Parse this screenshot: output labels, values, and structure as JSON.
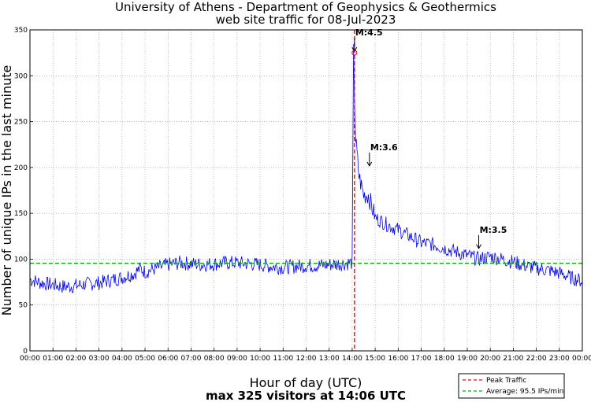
{
  "chart_data": {
    "type": "line",
    "title_line1": "University of Athens - Department of Geophysics & Geothermics",
    "title_line2": "web site traffic for 08-Jul-2023",
    "ylabel": "Number of unique IPs in the last minute",
    "xlabel": "Hour of day (UTC)",
    "subtitle": "max 325 visitors at 14:06 UTC",
    "xlim": [
      0,
      24
    ],
    "ylim": [
      0,
      350
    ],
    "x_ticks": [
      "00:00",
      "01:00",
      "02:00",
      "03:00",
      "04:00",
      "05:00",
      "06:00",
      "07:00",
      "08:00",
      "09:00",
      "10:00",
      "11:00",
      "12:00",
      "13:00",
      "14:00",
      "15:00",
      "16:00",
      "17:00",
      "18:00",
      "19:00",
      "20:00",
      "21:00",
      "22:00",
      "23:00",
      "00:00"
    ],
    "y_ticks": [
      0,
      50,
      100,
      150,
      200,
      250,
      300,
      350
    ],
    "grid": true,
    "series": [
      {
        "name": "traffic",
        "color": "#0000ff",
        "x": [
          0,
          0.5,
          1,
          1.5,
          2,
          2.5,
          3,
          3.5,
          4,
          4.5,
          4.8,
          5,
          5.5,
          6,
          6.5,
          7,
          7.5,
          8,
          8.5,
          9,
          9.5,
          10,
          10.5,
          11,
          11.5,
          12,
          12.5,
          13,
          13.5,
          14,
          14.06,
          14.15,
          14.3,
          14.5,
          14.7,
          15,
          15.5,
          16,
          16.5,
          17,
          17.5,
          18,
          18.5,
          19,
          19.5,
          20,
          20.5,
          21,
          21.5,
          22,
          22.5,
          23,
          23.5,
          24
        ],
        "y": [
          78,
          74,
          72,
          70,
          71,
          73,
          74,
          77,
          80,
          84,
          90,
          86,
          90,
          94,
          96,
          95,
          94,
          95,
          96,
          96,
          95,
          94,
          92,
          91,
          92,
          93,
          93,
          94,
          95,
          96,
          325,
          230,
          190,
          170,
          170,
          145,
          138,
          132,
          125,
          118,
          116,
          112,
          108,
          104,
          100,
          103,
          100,
          97,
          93,
          90,
          88,
          85,
          80,
          76
        ]
      }
    ],
    "peak": {
      "x": 14.1,
      "label": "Peak Traffic",
      "color": "#ff0000"
    },
    "average": {
      "y": 95.5,
      "label": "Average: 95.5 IPs/min",
      "color": "#00b000"
    },
    "annotations": [
      {
        "label": "M:4.5",
        "x": 14.1,
        "y": 325
      },
      {
        "label": "M:3.6",
        "x": 14.75,
        "y": 200
      },
      {
        "label": "M:3.5",
        "x": 19.5,
        "y": 110
      }
    ],
    "legend_position": "bottom-right"
  }
}
